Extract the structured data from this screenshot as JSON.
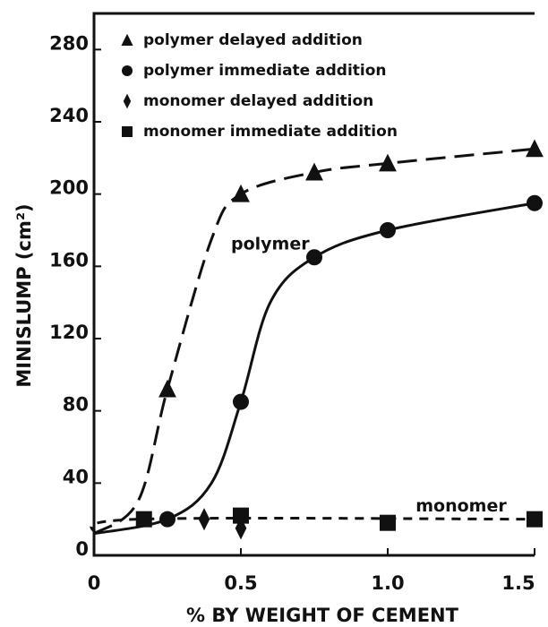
{
  "chart_data": {
    "type": "scatter",
    "y_label": "MINISLUMP (cm²)",
    "x_label": "% BY WEIGHT OF CEMENT",
    "xlim": [
      0,
      1.5
    ],
    "ylim": [
      0,
      300
    ],
    "xticks": [
      0,
      0.5,
      {
        "value": 1.0,
        "label": "1.0"
      },
      1.5
    ],
    "yticks": [
      0,
      40,
      80,
      120,
      160,
      200,
      240,
      280
    ],
    "series": [
      {
        "name": "polymer delayed addition",
        "marker": "triangle",
        "color": "#111111",
        "x": [
          0.25,
          0.5,
          0.75,
          1.0,
          1.5
        ],
        "values": [
          92,
          200,
          212,
          217,
          225
        ]
      },
      {
        "name": "polymer immediate addition",
        "marker": "circle",
        "color": "#111111",
        "x": [
          0.25,
          0.5,
          0.75,
          1.0,
          1.5
        ],
        "values": [
          20,
          85,
          165,
          180,
          195
        ]
      },
      {
        "name": "monomer delayed addition",
        "marker": "diamond",
        "color": "#111111",
        "x": [
          0.375,
          0.5
        ],
        "values": [
          20,
          15
        ]
      },
      {
        "name": "monomer immediate addition",
        "marker": "square",
        "color": "#111111",
        "x": [
          0.17,
          0.5,
          1.0,
          1.5
        ],
        "values": [
          20,
          22,
          18,
          20
        ]
      }
    ],
    "curves": [
      {
        "style": "dashed",
        "x": [
          0,
          0.15,
          0.25,
          0.4,
          0.5,
          0.75,
          1.0,
          1.5
        ],
        "values": [
          12,
          30,
          92,
          175,
          200,
          212,
          217,
          225
        ]
      },
      {
        "style": "solid",
        "x": [
          0,
          0.25,
          0.4,
          0.5,
          0.6,
          0.75,
          1.0,
          1.5
        ],
        "values": [
          12,
          20,
          40,
          85,
          140,
          165,
          180,
          195
        ]
      },
      {
        "style": "dotted",
        "x": [
          0,
          0.15,
          1.5
        ],
        "values": [
          12,
          20,
          20
        ]
      }
    ],
    "annotations": [
      {
        "text": "polymer",
        "x": 0.6,
        "y": 172
      },
      {
        "text": "monomer",
        "x": 1.25,
        "y": 27
      }
    ]
  }
}
